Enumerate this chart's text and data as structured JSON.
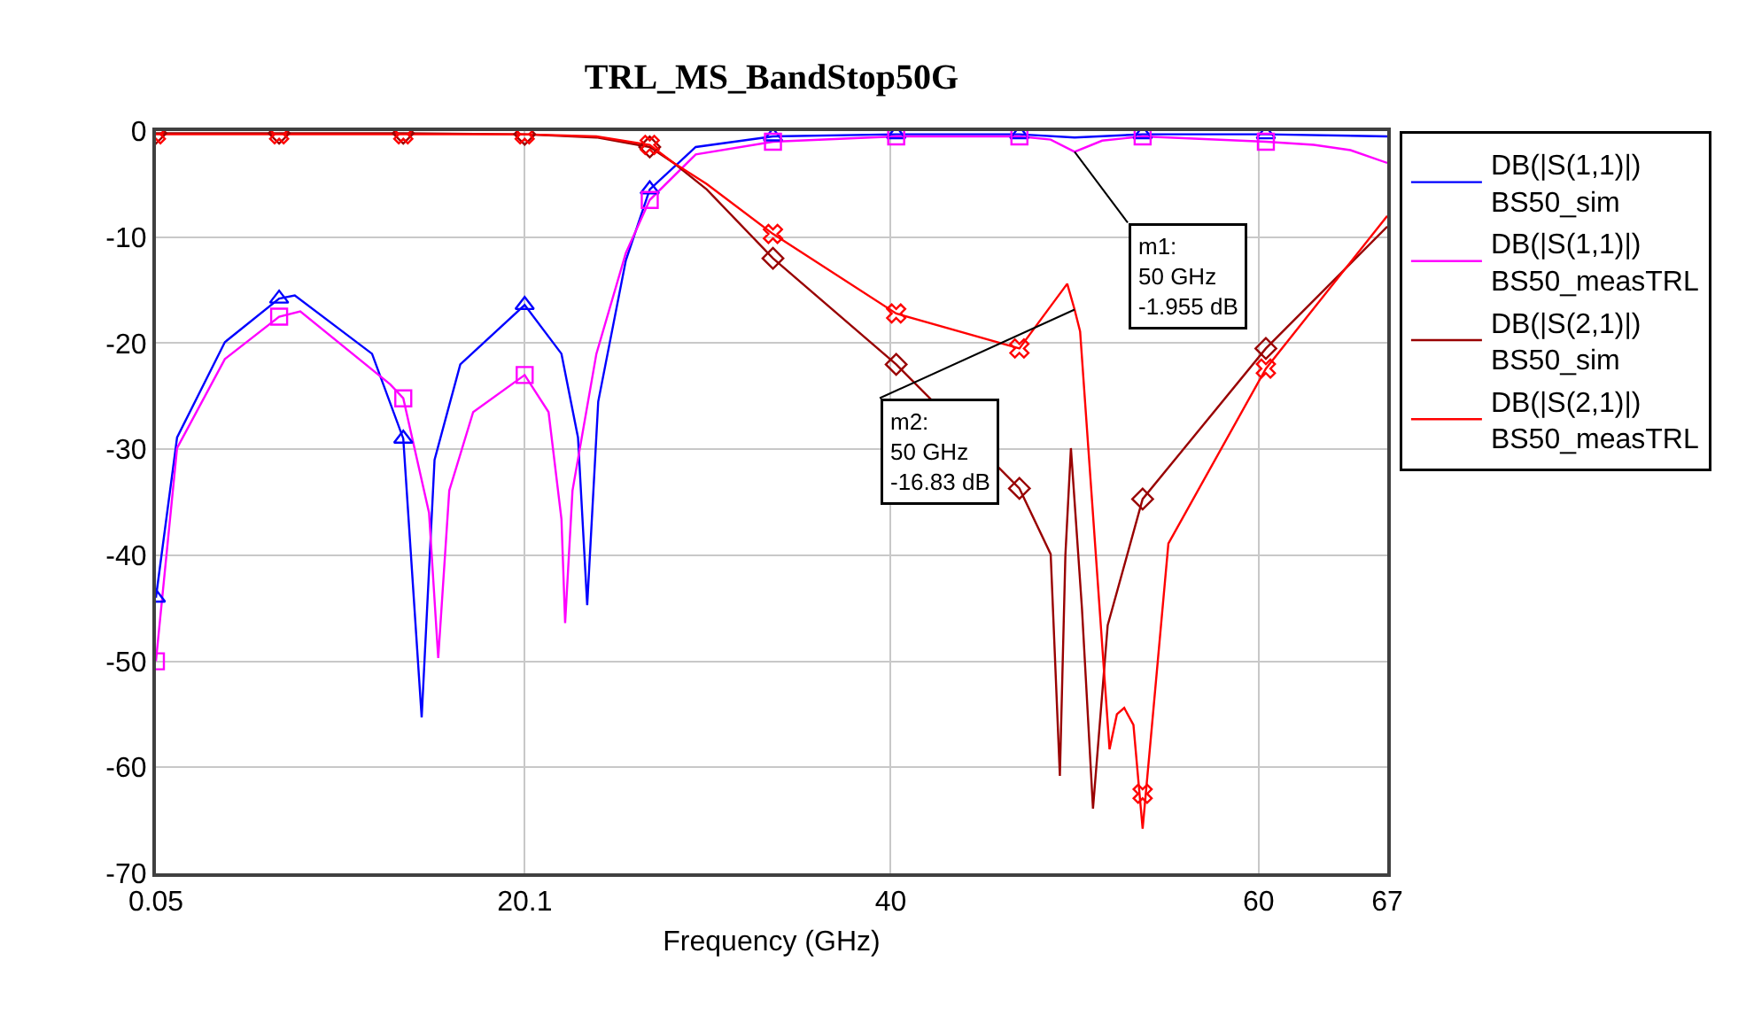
{
  "chart_data": {
    "type": "line",
    "title": "TRL_MS_BandStop50G",
    "xlabel": "Frequency (GHz)",
    "xlim": [
      0.05,
      67
    ],
    "xticks": [
      0.05,
      20.1,
      40,
      60,
      67
    ],
    "ylim": [
      -70,
      0
    ],
    "yticks": [
      0,
      -10,
      -20,
      -30,
      -40,
      -50,
      -60,
      -70
    ],
    "grid": true,
    "legend": "right",
    "line_style": "solid",
    "series": [
      {
        "name": "DB(|S(1,1)|)\nBS50_sim",
        "color": "#0000ff",
        "x": [
          0.05,
          1.2,
          3.8,
          6.75,
          7.6,
          11.8,
          13.5,
          14.5,
          15.2,
          16.6,
          20.1,
          22.1,
          23.0,
          23.5,
          24.1,
          25.6,
          26.9,
          29.4,
          33.6,
          40.3,
          47,
          50,
          53.7,
          60.4,
          67
        ],
        "values": [
          -44,
          -28.9,
          -19.9,
          -15.8,
          -15.5,
          -21,
          -29,
          -55.3,
          -31,
          -22,
          -16.4,
          -21,
          -28.9,
          -44.7,
          -25.5,
          -12.2,
          -5.5,
          -1.5,
          -0.5,
          -0.3,
          -0.3,
          -0.6,
          -0.3,
          -0.3,
          -0.5
        ]
      },
      {
        "name": "DB(|S(1,1)|)\nBS50_measTRL",
        "color": "#ff00ff",
        "x": [
          0.05,
          1.2,
          3.8,
          6.75,
          7.9,
          12.8,
          13.5,
          14.9,
          15.4,
          16,
          17.3,
          20.1,
          21.4,
          22.1,
          22.3,
          22.7,
          24,
          25.6,
          26.9,
          29.4,
          33.6,
          40.3,
          47,
          48.7,
          50,
          51.5,
          53.7,
          60.4,
          63,
          65,
          67
        ],
        "values": [
          -50,
          -29.9,
          -21.5,
          -17.5,
          -17,
          -23.9,
          -25.2,
          -36,
          -49.7,
          -33.9,
          -26.5,
          -23,
          -26.5,
          -36.6,
          -46.4,
          -33.9,
          -21,
          -11.5,
          -6.5,
          -2.2,
          -1,
          -0.5,
          -0.5,
          -0.8,
          -1.955,
          -0.9,
          -0.5,
          -1,
          -1.3,
          -1.8,
          -3
        ]
      },
      {
        "name": "DB(|S(2,1)|)\nBS50_sim",
        "color": "#990000",
        "x": [
          0.05,
          6.75,
          13.5,
          20.1,
          24,
          26.9,
          28.2,
          30,
          33.6,
          40.3,
          47,
          48.7,
          49.2,
          49.5,
          49.8,
          50.4,
          51,
          51.8,
          53.7,
          60.4,
          67
        ],
        "values": [
          -0.2,
          -0.2,
          -0.2,
          -0.3,
          -0.6,
          -1.5,
          -3,
          -5.5,
          -12,
          -22,
          -33.7,
          -39.9,
          -60.8,
          -40,
          -29.9,
          -45,
          -63.9,
          -46.6,
          -34.7,
          -20.5,
          -9
        ]
      },
      {
        "name": "DB(|S(2,1)|)\nBS50_measTRL",
        "color": "#ff0000",
        "x": [
          0.05,
          6.75,
          13.5,
          20.1,
          24,
          26.9,
          28.2,
          30,
          33.6,
          40.3,
          47,
          49.6,
          50,
          50.3,
          51.9,
          52.3,
          52.7,
          53.2,
          53.7,
          55.1,
          60.4,
          67
        ],
        "values": [
          -0.3,
          -0.3,
          -0.3,
          -0.3,
          -0.5,
          -1.3,
          -3,
          -5,
          -9.7,
          -17.2,
          -20.5,
          -14.4,
          -16.83,
          -18.9,
          -58.3,
          -55,
          -54.4,
          -56,
          -65.8,
          -38.9,
          -22.4,
          -8
        ]
      },
      {
        "type": "scatter",
        "color": "#0000ff",
        "marker": "triangle",
        "x": [
          0.05,
          6.75,
          13.5,
          20.1,
          26.9,
          33.6,
          40.3,
          47,
          53.7,
          60.4
        ],
        "values": [
          -44,
          -15.8,
          -29,
          -16.4,
          -5.5,
          -0.5,
          -0.3,
          -0.3,
          -0.3,
          -0.3
        ]
      },
      {
        "type": "scatter",
        "color": "#ff00ff",
        "marker": "square",
        "x": [
          0.05,
          6.75,
          13.5,
          20.1,
          26.9,
          33.6,
          40.3,
          47,
          53.7,
          60.4
        ],
        "values": [
          -50,
          -17.5,
          -25.2,
          -23,
          -6.5,
          -1,
          -0.5,
          -0.5,
          -0.5,
          -1
        ]
      },
      {
        "type": "scatter",
        "color": "#990000",
        "marker": "diamond",
        "x": [
          0.05,
          6.75,
          13.5,
          20.1,
          26.9,
          33.6,
          40.3,
          47,
          53.7,
          60.4
        ],
        "values": [
          -0.2,
          -0.2,
          -0.2,
          -0.3,
          -1.5,
          -12,
          -22,
          -33.7,
          -34.7,
          -20.5
        ]
      },
      {
        "type": "scatter",
        "color": "#ff0000",
        "marker": "cross",
        "x": [
          0.05,
          6.75,
          13.5,
          20.1,
          26.9,
          33.6,
          40.3,
          47,
          53.7,
          60.4
        ],
        "values": [
          -0.3,
          -0.3,
          -0.3,
          -0.3,
          -1.3,
          -9.7,
          -17.2,
          -20.5,
          -62.5,
          -22.4
        ]
      }
    ],
    "annotations": [
      {
        "text": "m1:\n50 GHz\n-1.955 dB",
        "x": 50,
        "y": -1.955
      },
      {
        "text": "m2:\n50 GHz\n-16.83 dB",
        "x": 50,
        "y": -16.83
      }
    ]
  }
}
